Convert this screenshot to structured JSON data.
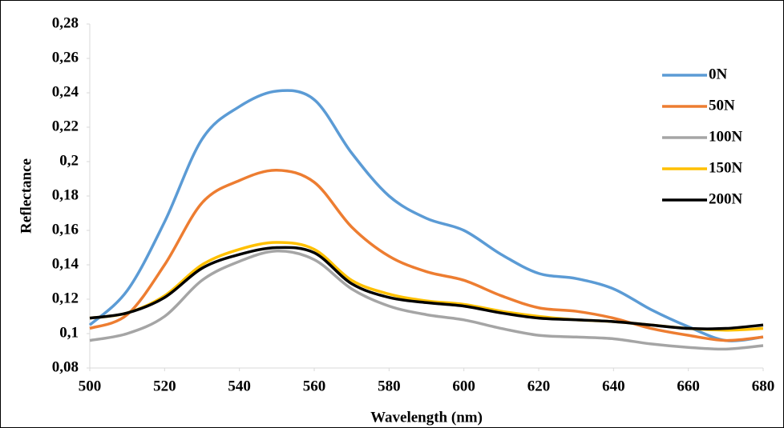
{
  "chart_data": {
    "type": "line",
    "x_label": "Wavelength (nm)",
    "y_label": "Reflectance",
    "x": [
      500,
      510,
      520,
      530,
      540,
      550,
      560,
      570,
      580,
      590,
      600,
      610,
      620,
      630,
      640,
      650,
      660,
      670,
      680
    ],
    "series": [
      {
        "name": "0N",
        "color": "#5b9bd5",
        "values": [
          0.105,
          0.125,
          0.165,
          0.213,
          0.232,
          0.241,
          0.236,
          0.205,
          0.18,
          0.167,
          0.16,
          0.146,
          0.135,
          0.132,
          0.126,
          0.114,
          0.104,
          0.096,
          0.098
        ]
      },
      {
        "name": "50N",
        "color": "#ed7d31",
        "values": [
          0.103,
          0.111,
          0.14,
          0.176,
          0.189,
          0.195,
          0.188,
          0.162,
          0.145,
          0.136,
          0.131,
          0.122,
          0.115,
          0.113,
          0.109,
          0.103,
          0.099,
          0.096,
          0.098
        ]
      },
      {
        "name": "100N",
        "color": "#a5a5a5",
        "values": [
          0.096,
          0.1,
          0.11,
          0.131,
          0.142,
          0.148,
          0.143,
          0.126,
          0.116,
          0.111,
          0.108,
          0.103,
          0.099,
          0.098,
          0.097,
          0.094,
          0.092,
          0.091,
          0.093
        ]
      },
      {
        "name": "150N",
        "color": "#ffc000",
        "values": [
          0.109,
          0.112,
          0.122,
          0.14,
          0.149,
          0.153,
          0.149,
          0.131,
          0.123,
          0.119,
          0.117,
          0.113,
          0.11,
          0.108,
          0.107,
          0.105,
          0.103,
          0.102,
          0.103
        ]
      },
      {
        "name": "200N",
        "color": "#000000",
        "values": [
          0.109,
          0.112,
          0.121,
          0.138,
          0.146,
          0.15,
          0.147,
          0.129,
          0.121,
          0.118,
          0.116,
          0.112,
          0.109,
          0.108,
          0.107,
          0.105,
          0.103,
          0.103,
          0.105
        ]
      }
    ],
    "xlim": [
      500,
      680
    ],
    "xticks": [
      500,
      520,
      540,
      560,
      580,
      600,
      620,
      640,
      660,
      680
    ],
    "ylim": [
      0.08,
      0.28
    ],
    "yticks": [
      {
        "value": 0.08,
        "label": "0,08"
      },
      {
        "value": 0.1,
        "label": "0,1"
      },
      {
        "value": 0.12,
        "label": "0,12"
      },
      {
        "value": 0.14,
        "label": "0,14"
      },
      {
        "value": 0.16,
        "label": "0,16"
      },
      {
        "value": 0.18,
        "label": "0,18"
      },
      {
        "value": 0.2,
        "label": "0,2"
      },
      {
        "value": 0.22,
        "label": "0,22"
      },
      {
        "value": 0.24,
        "label": "0,24"
      },
      {
        "value": 0.26,
        "label": "0,26"
      },
      {
        "value": 0.28,
        "label": "0,28"
      }
    ],
    "grid": false,
    "legend_position": "right"
  }
}
